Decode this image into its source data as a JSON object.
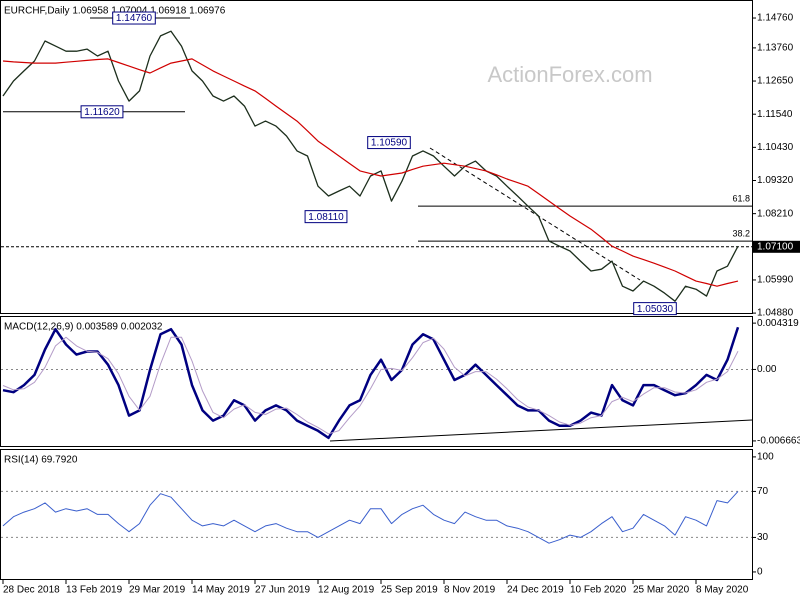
{
  "chart_data": [
    {
      "type": "line",
      "title": "EURCHF,Daily 1.06958 1.07004 1.06918 1.06976",
      "watermark": "ActionForex.com",
      "ylim": [
        1.0485,
        1.1533
      ],
      "yticks": [
        {
          "value": 1.1476,
          "label": "1.14760"
        },
        {
          "value": 1.1376,
          "label": "1.13760"
        },
        {
          "value": 1.1265,
          "label": "1.12650"
        },
        {
          "value": 1.1154,
          "label": "1.11540"
        },
        {
          "value": 1.1043,
          "label": "1.10430"
        },
        {
          "value": 1.0932,
          "label": "1.09320"
        },
        {
          "value": 1.0821,
          "label": "1.08210"
        },
        {
          "value": 1.0599,
          "label": "1.05990"
        },
        {
          "value": 1.0488,
          "label": "1.04880"
        }
      ],
      "series": [
        {
          "color": "#1c2e1c",
          "values": [
            1.1215,
            1.1265,
            1.1299,
            1.1332,
            1.1399,
            1.1382,
            1.1365,
            1.1365,
            1.1372,
            1.1349,
            1.1365,
            1.1265,
            1.1198,
            1.1232,
            1.1349,
            1.1416,
            1.1432,
            1.1382,
            1.1299,
            1.1265,
            1.1215,
            1.1198,
            1.1215,
            1.1181,
            1.1114,
            1.1131,
            1.1114,
            1.1081,
            1.1031,
            1.1014,
            1.0913,
            1.088,
            1.0897,
            1.0913,
            1.088,
            1.0947,
            1.0964,
            1.0863,
            1.093,
            1.1014,
            1.1031,
            1.1014,
            1.098,
            1.0947,
            1.098,
            1.0997,
            1.0964,
            1.0947,
            1.0913,
            1.088,
            1.0846,
            1.0813,
            1.0729,
            1.0712,
            1.0696,
            1.0662,
            1.0629,
            1.0635,
            1.0662,
            1.0578,
            1.0562,
            1.0595,
            1.0578,
            1.0555,
            1.0528,
            1.0578,
            1.0568,
            1.0545,
            1.0629,
            1.0645,
            1.0712
          ]
        },
        {
          "color": "#d00000",
          "values": [
            1.1332,
            1.1329,
            1.1327,
            1.1325,
            1.1325,
            1.1325,
            1.1328,
            1.1331,
            1.1334,
            1.1337,
            1.1339,
            1.1327,
            1.1315,
            1.1303,
            1.1292,
            1.1309,
            1.1325,
            1.1332,
            1.1339,
            1.1319,
            1.1299,
            1.1282,
            1.1265,
            1.1248,
            1.1232,
            1.1207,
            1.1181,
            1.1156,
            1.1131,
            1.1098,
            1.1064,
            1.1039,
            1.1014,
            1.0989,
            1.0964,
            1.0955,
            1.0947,
            1.0952,
            1.0957,
            1.0969,
            1.098,
            1.0985,
            1.099,
            1.0985,
            1.098,
            1.0972,
            1.0964,
            1.0951,
            1.0937,
            1.0925,
            1.0913,
            1.0888,
            1.0863,
            1.0838,
            1.0813,
            1.0791,
            1.0769,
            1.0741,
            1.0712,
            1.0696,
            1.0679,
            1.0667,
            1.0655,
            1.0642,
            1.0629,
            1.0612,
            1.0595,
            1.0587,
            1.0578,
            1.0587,
            1.0595
          ]
        }
      ],
      "annotations": [
        {
          "label": "1.14760",
          "value": 1.1476
        },
        {
          "label": "1.11620",
          "value": 1.1162
        },
        {
          "label": "1.10590",
          "value": 1.1059
        },
        {
          "label": "1.08110",
          "value": 1.0811
        },
        {
          "label": "1.05030",
          "value": 1.0503
        }
      ],
      "fib_levels": [
        {
          "level": 61.8,
          "price": 1.0846
        },
        {
          "level": 38.2,
          "price": 1.0729
        }
      ],
      "price_line": {
        "label": "1.07100",
        "value": 1.071
      }
    },
    {
      "type": "line",
      "title": "MACD(12,26,9) 0.003589 0.002032",
      "ylim": [
        -0.00723,
        0.00489
      ],
      "yticks": [
        0.004319,
        {
          "value": 0,
          "label": "0.00"
        },
        -0.006663
      ],
      "levels": [
        0
      ],
      "series": [
        {
          "color": "#000080",
          "values": [
            -0.00193,
            -0.00212,
            -0.00146,
            -0.00051,
            0.00186,
            0.00375,
            0.00233,
            0.00138,
            0.00167,
            0.00167,
            0.00044,
            -0.00146,
            -0.0043,
            -0.00382,
            -4e-05,
            0.00328,
            0.00375,
            0.00233,
            -0.00146,
            -0.00382,
            -0.00477,
            -0.0043,
            -0.00288,
            -0.00335,
            -0.00477,
            -0.00382,
            -0.00335,
            -0.00382,
            -0.00477,
            -0.00525,
            -0.00572,
            -0.00638,
            -0.00477,
            -0.00335,
            -0.00288,
            -0.00051,
            0.00091,
            -0.00098,
            -4e-05,
            0.00233,
            0.00328,
            0.0028,
            0.00091,
            -0.00098,
            -0.00051,
            0.00044,
            -0.00051,
            -0.00146,
            -0.0024,
            -0.00335,
            -0.00382,
            -0.00382,
            -0.00477,
            -0.00525,
            -0.00525,
            -0.00477,
            -0.00402,
            -0.0043,
            -0.00146,
            -0.00288,
            -0.00335,
            -0.00146,
            -0.00146,
            -0.00193,
            -0.0024,
            -0.00221,
            -0.00146,
            -0.00051,
            -0.00098,
            0.00091,
            0.00394
          ]
        },
        {
          "color": "#b49cc8",
          "values": [
            -0.0015,
            -0.0019,
            -0.0018,
            -0.0012,
            0.0002,
            0.0022,
            0.003,
            0.0022,
            0.0017,
            0.0016,
            0.001,
            -0.0004,
            -0.0025,
            -0.0038,
            -0.0025,
            0.0005,
            0.003,
            0.003,
            0.0008,
            -0.002,
            -0.004,
            -0.0045,
            -0.0037,
            -0.0033,
            -0.004,
            -0.0042,
            -0.0037,
            -0.0036,
            -0.0042,
            -0.0049,
            -0.0054,
            -0.006,
            -0.0057,
            -0.0045,
            -0.0034,
            -0.0018,
            0,
            0.0001,
            -0.0001,
            0.0011,
            0.0025,
            0.0029,
            0.0019,
            0.0002,
            -0.0006,
            -0.0002,
            -0.0002,
            -0.0009,
            -0.0018,
            -0.0028,
            -0.0035,
            -0.0038,
            -0.0043,
            -0.0049,
            -0.0052,
            -0.005,
            -0.0045,
            -0.0043,
            -0.003,
            -0.0026,
            -0.003,
            -0.0023,
            -0.0017,
            -0.0017,
            -0.0021,
            -0.0022,
            -0.0019,
            -0.0012,
            -0.0009,
            -0.0002,
            0.0017
          ]
        }
      ]
    },
    {
      "type": "line",
      "title": "RSI(14) 69.7920",
      "ylim": [
        -7,
        106
      ],
      "yticks": [
        100,
        70,
        30,
        0
      ],
      "levels": [
        30,
        70
      ],
      "categories": [
        "28 Dec 2018",
        null,
        null,
        null,
        null,
        null,
        "13 Feb 2019",
        null,
        null,
        null,
        null,
        null,
        "29 Mar 2019",
        null,
        null,
        null,
        null,
        null,
        "14 May 2019",
        null,
        null,
        null,
        null,
        null,
        "27 Jun 2019",
        null,
        null,
        null,
        null,
        null,
        "12 Aug 2019",
        null,
        null,
        null,
        null,
        null,
        "25 Sep 2019",
        null,
        null,
        null,
        null,
        null,
        "8 Nov 2019",
        null,
        null,
        null,
        null,
        null,
        "24 Dec 2019",
        null,
        null,
        null,
        null,
        null,
        "10 Feb 2020",
        null,
        null,
        null,
        null,
        null,
        "25 Mar 2020",
        null,
        null,
        null,
        null,
        null,
        "8 May 2020",
        null,
        null,
        null,
        null
      ],
      "series": [
        {
          "color": "#3a5fcd",
          "values": [
            40,
            48,
            52,
            55,
            60,
            52,
            55,
            53,
            55,
            50,
            50,
            42,
            35,
            42,
            58,
            68,
            65,
            55,
            45,
            40,
            42,
            40,
            45,
            40,
            35,
            40,
            42,
            38,
            35,
            35,
            30,
            35,
            40,
            45,
            42,
            55,
            55,
            42,
            50,
            55,
            58,
            50,
            45,
            42,
            52,
            48,
            45,
            45,
            40,
            38,
            35,
            30,
            25,
            28,
            32,
            30,
            35,
            42,
            48,
            35,
            38,
            50,
            45,
            40,
            32,
            48,
            45,
            40,
            62,
            60,
            70
          ]
        }
      ]
    }
  ]
}
